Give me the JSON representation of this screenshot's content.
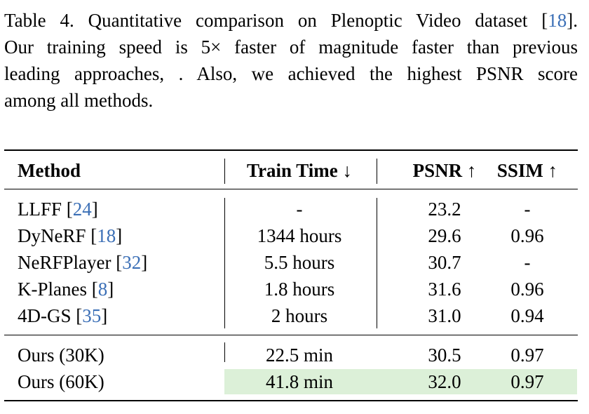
{
  "caption": {
    "first_line": [
      "Table 4. Quantitative comparison on Plenoptic Video dataset [",
      "18",
      "]."
    ],
    "lines": [
      "Our training speed is 5× faster of magnitude faster than previous",
      "leading approaches, .  Also, we achieved the highest PSNR score",
      "among all methods."
    ]
  },
  "table": {
    "header": [
      "Method",
      "Train Time ↓",
      "PSNR ↑",
      "SSIM ↑"
    ],
    "rows": [
      {
        "method": [
          "LLFF [",
          "24",
          "]"
        ],
        "train_time": "-",
        "psnr": "23.2",
        "ssim": "-"
      },
      {
        "method": [
          "DyNeRF [",
          "18",
          "]"
        ],
        "train_time": "1344 hours",
        "psnr": "29.6",
        "ssim": "0.96"
      },
      {
        "method": [
          "NeRFPlayer [",
          "32",
          "]"
        ],
        "train_time": "5.5 hours",
        "psnr": "30.7",
        "ssim": "-"
      },
      {
        "method": [
          "K-Planes [",
          "8",
          "]"
        ],
        "train_time": "1.8 hours",
        "psnr": "31.6",
        "ssim": "0.96"
      },
      {
        "method": [
          "4D-GS [",
          "35",
          "]"
        ],
        "train_time": "2 hours",
        "psnr": "31.0",
        "ssim": "0.94"
      },
      {
        "method": [
          "Ours (30K)"
        ],
        "train_time": "22.5 min",
        "psnr": "30.5",
        "ssim": "0.97"
      },
      {
        "method": [
          "Ours (60K)"
        ],
        "train_time": "41.8 min",
        "psnr": "32.0",
        "ssim": "0.97",
        "highlight": true
      }
    ]
  }
}
